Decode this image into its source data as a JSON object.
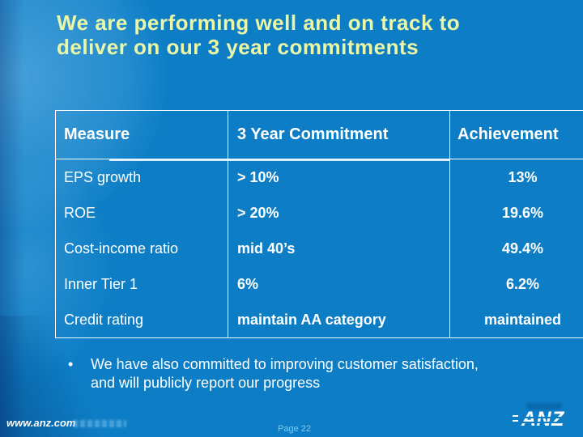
{
  "slide": {
    "title_lines": [
      "We are performing well and on track to",
      "deliver on our 3 year commitments"
    ],
    "table": {
      "headers": [
        "Measure",
        "3 Year Commitment",
        "Achievement"
      ],
      "rows": [
        {
          "measure": "EPS growth",
          "commitment": "> 10%",
          "achievement": "13%"
        },
        {
          "measure": "ROE",
          "commitment": "> 20%",
          "achievement": "19.6%"
        },
        {
          "measure": "Cost-income ratio",
          "commitment": "mid 40’s",
          "achievement": "49.4%"
        },
        {
          "measure": "Inner Tier 1",
          "commitment": "6%",
          "achievement": "6.2%"
        },
        {
          "measure": "Credit rating",
          "commitment": "maintain AA category",
          "achievement": "maintained"
        }
      ]
    },
    "bullet": {
      "marker": "•",
      "lines": [
        "We have also committed to improving customer satisfaction,",
        "and will publicly report our progress"
      ]
    },
    "footer": {
      "website": "www.anz.com",
      "page_label": "Page 22",
      "logo_text": "ANZ"
    },
    "colors": {
      "background": "#0d7ec6",
      "title_text": "#ecf7a6",
      "table_text": "#ffffff",
      "table_border": "#ffffff",
      "page_label_text": "#7ec9ef"
    }
  }
}
